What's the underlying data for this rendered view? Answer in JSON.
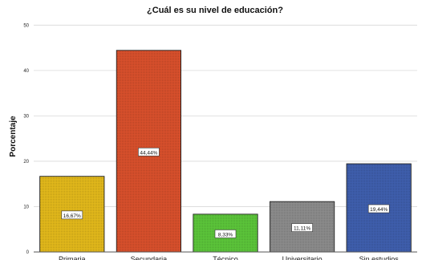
{
  "chart_data": {
    "type": "bar",
    "title": "¿Cuál es su nivel de educación?",
    "xlabel": "",
    "ylabel": "Porcentaje",
    "ylim": [
      0,
      52
    ],
    "yticks": [
      0,
      10,
      20,
      30,
      40,
      50
    ],
    "grid": true,
    "categories": [
      "Primaria",
      "Secundaria",
      "Técnico",
      "Universitario",
      "Sin estudios"
    ],
    "values": [
      16.67,
      44.44,
      8.33,
      11.11,
      19.44
    ],
    "data_labels": [
      "16,67%",
      "44,44%",
      "8,33%",
      "11,11%",
      "19,44%"
    ],
    "colors": [
      "#e3b91b",
      "#d9502c",
      "#5cc63a",
      "#8c8c8c",
      "#3f5fae"
    ]
  }
}
